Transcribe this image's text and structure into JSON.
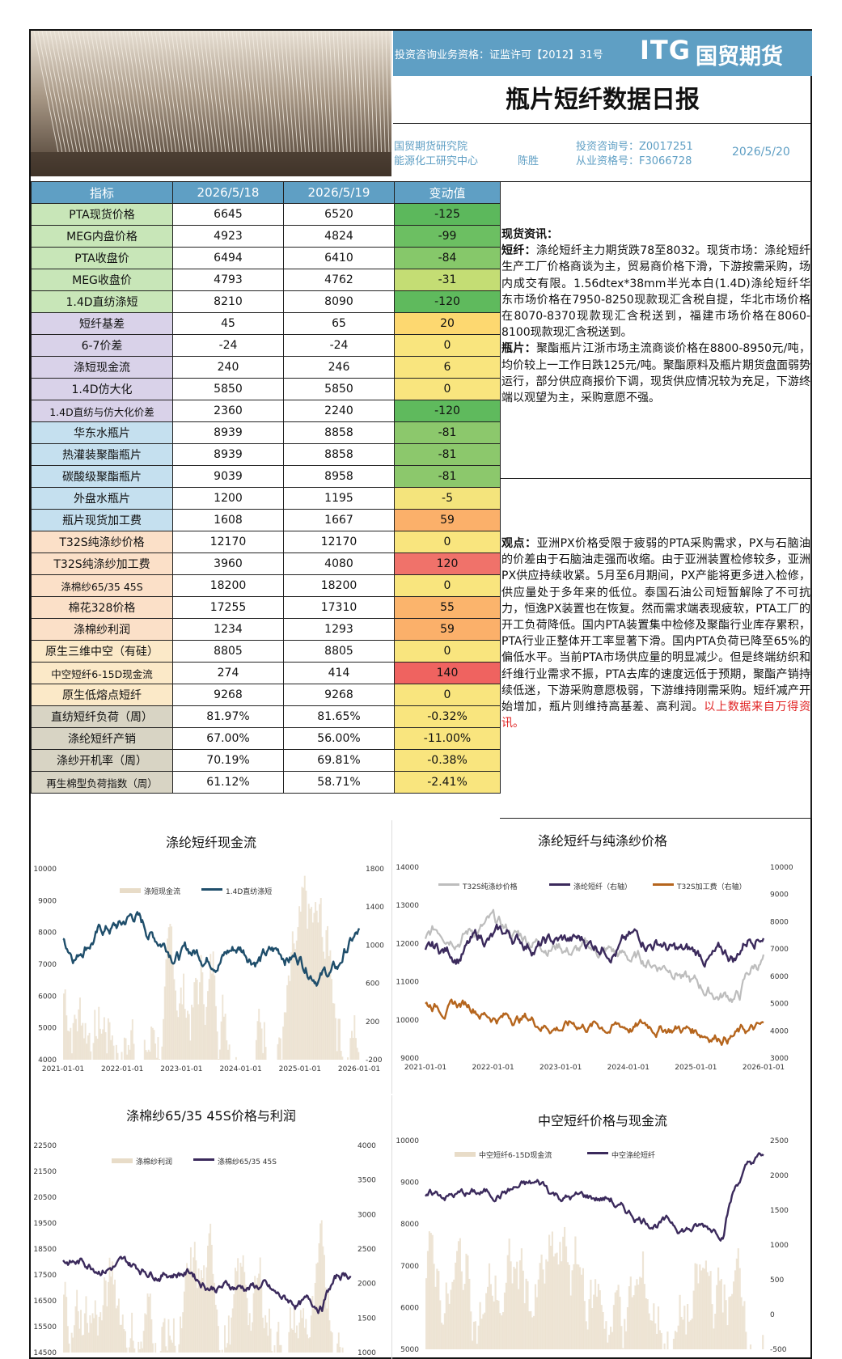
{
  "header": {
    "license": "投资咨询业务资格：证监许可【2012】31号",
    "logo": "ITG",
    "logo_cn": "国贸期货",
    "title": "瓶片短纤数据日报",
    "institute": "国贸期货研究院",
    "center": "能源化工研究中心",
    "analyst": "陈胜",
    "consult_no": "投资咨询号：Z0017251",
    "practice_no": "从业资格号：F3066728",
    "date": "2026/5/20"
  },
  "table": {
    "headers": [
      "指标",
      "2026/5/18",
      "2026/5/19",
      "变动值"
    ],
    "rows": [
      {
        "name": "PTA现货价格",
        "d1": "6645",
        "d2": "6520",
        "chg": "-125",
        "ncolor": "#c8e6b8",
        "ccolor": "#5cb85c"
      },
      {
        "name": "MEG内盘价格",
        "d1": "4923",
        "d2": "4824",
        "chg": "-99",
        "ncolor": "#c8e6b8",
        "ccolor": "#6cbf62"
      },
      {
        "name": "PTA收盘价",
        "d1": "6494",
        "d2": "6410",
        "chg": "-84",
        "ncolor": "#c8e6b8",
        "ccolor": "#86c86a"
      },
      {
        "name": "MEG收盘价",
        "d1": "4793",
        "d2": "4762",
        "chg": "-31",
        "ncolor": "#c8e6b8",
        "ccolor": "#c4dd74"
      },
      {
        "name": "1.4D直纺涤短",
        "d1": "8210",
        "d2": "8090",
        "chg": "-120",
        "ncolor": "#c8e6b8",
        "ccolor": "#5fba5d"
      },
      {
        "name": "短纤基差",
        "d1": "45",
        "d2": "65",
        "chg": "20",
        "ncolor": "#d9d2e9",
        "ccolor": "#fdd870"
      },
      {
        "name": "6-7价差",
        "d1": "-24",
        "d2": "-24",
        "chg": "0",
        "ncolor": "#d9d2e9",
        "ccolor": "#f9e57e"
      },
      {
        "name": "涤短现金流",
        "d1": "240",
        "d2": "246",
        "chg": "6",
        "ncolor": "#d9d2e9",
        "ccolor": "#f9e57e"
      },
      {
        "name": "1.4D仿大化",
        "d1": "5850",
        "d2": "5850",
        "chg": "0",
        "ncolor": "#d9d2e9",
        "ccolor": "#f9e57e"
      },
      {
        "name": "1.4D直纺与仿大化价差",
        "d1": "2360",
        "d2": "2240",
        "chg": "-120",
        "ncolor": "#d9d2e9",
        "ccolor": "#5fba5d"
      },
      {
        "name": "华东水瓶片",
        "d1": "8939",
        "d2": "8858",
        "chg": "-81",
        "ncolor": "#c5e0ef",
        "ccolor": "#8cc86c"
      },
      {
        "name": "热灌装聚酯瓶片",
        "d1": "8939",
        "d2": "8858",
        "chg": "-81",
        "ncolor": "#c5e0ef",
        "ccolor": "#8cc86c"
      },
      {
        "name": "碳酸级聚酯瓶片",
        "d1": "9039",
        "d2": "8958",
        "chg": "-81",
        "ncolor": "#c5e0ef",
        "ccolor": "#8cc86c"
      },
      {
        "name": "外盘水瓶片",
        "d1": "1200",
        "d2": "1195",
        "chg": "-5",
        "ncolor": "#c5e0ef",
        "ccolor": "#f4e47c"
      },
      {
        "name": "瓶片现货加工费",
        "d1": "1608",
        "d2": "1667",
        "chg": "59",
        "ncolor": "#c5e0ef",
        "ccolor": "#fbb06a"
      },
      {
        "name": "T32S纯涤纱价格",
        "d1": "12170",
        "d2": "12170",
        "chg": "0",
        "ncolor": "#fbe0c8",
        "ccolor": "#f9e57e"
      },
      {
        "name": "T32S纯涤纱加工费",
        "d1": "3960",
        "d2": "4080",
        "chg": "120",
        "ncolor": "#fbe0c8",
        "ccolor": "#f0726a"
      },
      {
        "name": "涤棉纱65/35 45S",
        "d1": "18200",
        "d2": "18200",
        "chg": "0",
        "ncolor": "#fbe0c8",
        "ccolor": "#f9e57e"
      },
      {
        "name": "棉花328价格",
        "d1": "17255",
        "d2": "17310",
        "chg": "55",
        "ncolor": "#fbe0c8",
        "ccolor": "#fbb46c"
      },
      {
        "name": "涤棉纱利润",
        "d1": "1234",
        "d2": "1293",
        "chg": "59",
        "ncolor": "#fbe0c8",
        "ccolor": "#fbb06a"
      },
      {
        "name": "原生三维中空（有硅）",
        "d1": "8805",
        "d2": "8805",
        "chg": "0",
        "ncolor": "#fbe9c8",
        "ccolor": "#f9e57e"
      },
      {
        "name": "中空短纤6-15D现金流",
        "d1": "274",
        "d2": "414",
        "chg": "140",
        "ncolor": "#fbe9c8",
        "ccolor": "#ef6360"
      },
      {
        "name": "原生低熔点短纤",
        "d1": "9268",
        "d2": "9268",
        "chg": "0",
        "ncolor": "#fbe9c8",
        "ccolor": "#f9e57e"
      },
      {
        "name": "直纺短纤负荷（周）",
        "d1": "81.97%",
        "d2": "81.65%",
        "chg": "-0.32%",
        "ncolor": "#d8d4c4",
        "ccolor": "#f9e57e"
      },
      {
        "name": "涤纶短纤产销",
        "d1": "67.00%",
        "d2": "56.00%",
        "chg": "-11.00%",
        "ncolor": "#d8d4c4",
        "ccolor": "#f9e57e"
      },
      {
        "name": "涤纱开机率（周）",
        "d1": "70.19%",
        "d2": "69.81%",
        "chg": "-0.38%",
        "ncolor": "#d8d4c4",
        "ccolor": "#f9e57e"
      },
      {
        "name": "再生棉型负荷指数（周）",
        "d1": "61.12%",
        "d2": "58.71%",
        "chg": "-2.41%",
        "ncolor": "#d8d4c4",
        "ccolor": "#f9e57e"
      }
    ]
  },
  "spot": {
    "heading": "现货资讯：",
    "p1_label": "短纤：",
    "p1": "涤纶短纤主力期货跌78至8032。现货市场：涤纶短纤生产工厂价格商谈为主，贸易商价格下滑，下游按需采购，场内成交有限。1.56dtex*38mm半光本白(1.4D)涤纶短纤华东市场价格在7950-8250现款现汇含税自提，华北市场价格在8070-8370现款现汇含税送到，福建市场价格在8060-8100现款现汇含税送到。",
    "p2_label": "瓶片：",
    "p2": "聚酯瓶片江浙市场主流商谈价格在8800-8950元/吨，均价较上一工作日跌125元/吨。聚酯原料及瓶片期货盘面弱势运行，部分供应商报价下调，现货供应情况较为充足，下游终端以观望为主，采购意愿不强。"
  },
  "view": {
    "label": "观点：",
    "text": "亚洲PX价格受限于疲弱的PTA采购需求，PX与石脑油的价差由于石脑油走强而收缩。由于亚洲装置检修较多，亚洲PX供应持续收紧。5月至6月期间，PX产能将更多进入检修，供应量处于多年来的低位。泰国石油公司短暂解除了不可抗力，恒逸PX装置也在恢复。然而需求端表现疲软，PTA工厂的开工负荷降低。国内PTA装置集中检修及聚酯行业库存累积，PTA行业正整体开工率显著下滑。国内PTA负荷已降至65%的偏低水平。当前PTA市场供应量的明显减少。但是终端纺织和纤维行业需求不振，PTA去库的速度远低于预期，聚酯产销持续低迷，下游采购意愿极弱，下游维持刚需采购。短纤减产开始增加，瓶片则维持高基差、高利润。",
    "source": "以上数据来自万得资讯。"
  },
  "charts": {
    "c1": {
      "title": "涤纶短纤现金流",
      "legend": [
        "涤短现金流",
        "1.4D直纺涤短"
      ],
      "yl": [
        "10000",
        "9000",
        "8000",
        "7000",
        "6000",
        "5000",
        "4000"
      ],
      "yr": [
        "1800",
        "1400",
        "1000",
        "600",
        "200",
        "-200"
      ],
      "x": [
        "2021-01-01",
        "2022-01-01",
        "2023-01-01",
        "2024-01-01",
        "2025-01-01",
        "2026-01-01"
      ]
    },
    "c2": {
      "title": "涤纶短纤与纯涤纱价格",
      "legend": [
        "T32S纯涤纱价格",
        "涤纶短纤（右轴）",
        "T32S加工费（右轴）"
      ],
      "yl": [
        "14000",
        "13000",
        "12000",
        "11000",
        "10000",
        "9000"
      ],
      "yr": [
        "10000",
        "9000",
        "8000",
        "7000",
        "6000",
        "5000",
        "4000",
        "3000"
      ],
      "x": [
        "2021-01-01",
        "2022-01-01",
        "2023-01-01",
        "2024-01-01",
        "2025-01-01",
        "2026-01-01"
      ]
    },
    "c3": {
      "title": "涤棉纱65/35 45S价格与利润",
      "legend": [
        "涤棉纱利润",
        "涤棉纱65/35 45S"
      ],
      "yl": [
        "22500",
        "21500",
        "20500",
        "19500",
        "18500",
        "17500",
        "16500",
        "15500",
        "14500"
      ],
      "yr": [
        "4000",
        "3500",
        "3000",
        "2500",
        "2000",
        "1500",
        "1000"
      ]
    },
    "c4": {
      "title": "中空短纤价格与现金流",
      "legend": [
        "中空短纤6-15D现金流",
        "中空涤纶短纤"
      ],
      "yl": [
        "10000",
        "9000",
        "8000",
        "7000",
        "6000",
        "5000"
      ],
      "yr": [
        "2500",
        "2000",
        "1500",
        "1000",
        "500",
        "0",
        "-500"
      ]
    }
  },
  "colors": {
    "blue": "#5f9fc4",
    "navy": "#1f4e6b",
    "purple": "#3b2a5c",
    "orange": "#b5651d",
    "gray": "#bdbdbd",
    "beige": "#e8dcc8"
  }
}
